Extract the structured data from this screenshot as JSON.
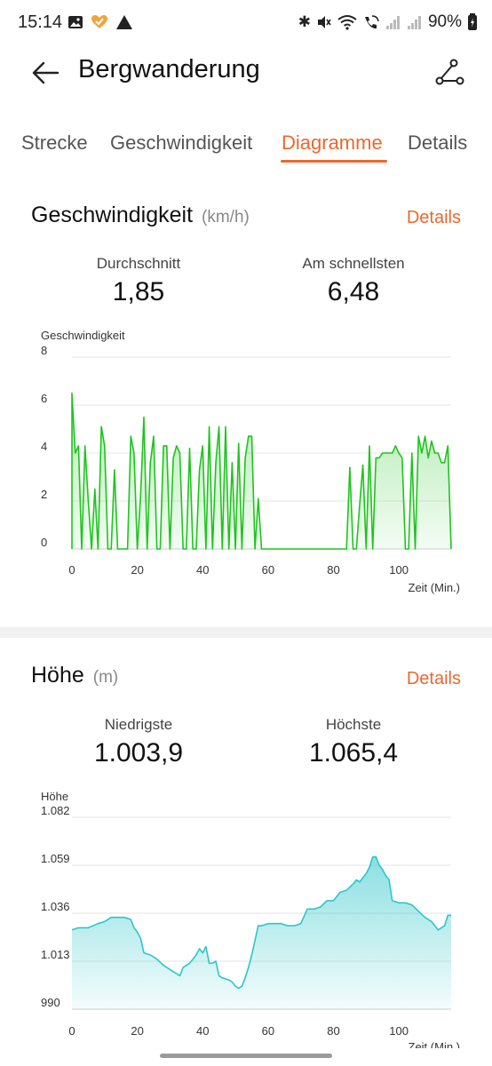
{
  "status_bar": {
    "time": "15:14",
    "battery": "90%",
    "icons": [
      "image-icon",
      "app-heart-icon",
      "alert-triangle-icon",
      "bluetooth-icon",
      "mute-icon",
      "wifi-icon",
      "call-wifi-icon",
      "signal-icon",
      "signal-icon",
      "battery-charging-icon"
    ]
  },
  "header": {
    "title": "Bergwanderung",
    "back_icon": "arrow-left-icon",
    "route_icon": "route-icon"
  },
  "tabs": [
    {
      "label": "Strecke",
      "active": false
    },
    {
      "label": "Geschwindigkeit",
      "active": false
    },
    {
      "label": "Diagramme",
      "active": true
    },
    {
      "label": "Details",
      "active": false
    }
  ],
  "accent_color": "#e8692e",
  "speed": {
    "title": "Geschwindigkeit",
    "unit": "(km/h)",
    "details_label": "Details",
    "stats": [
      {
        "label": "Durchschnitt",
        "value": "1,85"
      },
      {
        "label": "Am schnellsten",
        "value": "6,48"
      }
    ]
  },
  "elevation": {
    "title": "Höhe",
    "unit": "(m)",
    "details_label": "Details",
    "stats": [
      {
        "label": "Niedrigste",
        "value": "1.003,9"
      },
      {
        "label": "Höchste",
        "value": "1.065,4"
      }
    ]
  },
  "chart_data": [
    {
      "type": "area",
      "ylabel": "Geschwindigkeit",
      "xlabel": "Zeit (Min.)",
      "color": "#1fc41f",
      "xlim": [
        0,
        116
      ],
      "ylim": [
        0,
        8
      ],
      "x_ticks": [
        "0",
        "20",
        "40",
        "60",
        "80",
        "100"
      ],
      "y_ticks": [
        "8",
        "6",
        "4",
        "2",
        "0"
      ],
      "grid": true,
      "x": [
        -1,
        0,
        1,
        2,
        3,
        4,
        5,
        6,
        7,
        8,
        9,
        10,
        11,
        12,
        13,
        14,
        15,
        16,
        17,
        18,
        19,
        20,
        21,
        22,
        23,
        24,
        25,
        26,
        27,
        28,
        29,
        30,
        31,
        32,
        33,
        34,
        35,
        36,
        37,
        38,
        39,
        40,
        41,
        42,
        43,
        44,
        45,
        46,
        47,
        48,
        49,
        50,
        51,
        52,
        53,
        54,
        55,
        56,
        57,
        58,
        60,
        70,
        80,
        84,
        85,
        86,
        87,
        88,
        89,
        90,
        91,
        92,
        93,
        94,
        95,
        96,
        97,
        98,
        99,
        100,
        101,
        102,
        103,
        104,
        105,
        106,
        107,
        108,
        109,
        110,
        111,
        112,
        113,
        114,
        115,
        116
      ],
      "y": [
        0,
        6.5,
        4,
        4.3,
        0,
        4.3,
        2,
        0,
        2.5,
        0,
        5.1,
        4.3,
        0,
        0,
        3.3,
        0,
        0,
        0,
        0,
        4.7,
        4,
        0,
        2.2,
        5.5,
        0,
        3.6,
        4.7,
        0,
        0,
        4.3,
        4.3,
        0,
        3.8,
        4.3,
        4,
        0,
        0,
        4.2,
        0,
        0,
        3.3,
        4.3,
        0,
        5.1,
        0,
        3.6,
        5.1,
        0,
        5.1,
        0,
        3.6,
        0,
        4.4,
        0,
        3.8,
        4.7,
        4.7,
        0,
        2.1,
        0,
        0,
        0,
        0,
        0,
        3.4,
        0,
        0,
        1.8,
        3.5,
        0,
        4.3,
        0,
        3.8,
        3.8,
        4,
        4,
        4,
        4,
        4.3,
        4,
        3.8,
        0,
        0,
        4,
        0,
        4.7,
        4,
        4.7,
        3.8,
        4.5,
        4,
        4,
        3.6,
        3.6,
        4.3,
        0
      ]
    },
    {
      "type": "area",
      "ylabel": "Höhe",
      "xlabel": "Zeit (Min.)",
      "color": "#2dc6c9",
      "xlim": [
        0,
        116
      ],
      "ylim": [
        990,
        1082
      ],
      "x_ticks": [
        "0",
        "20",
        "40",
        "60",
        "80",
        "100"
      ],
      "y_ticks": [
        "1.082",
        "1.059",
        "1.036",
        "1.013",
        "990"
      ],
      "grid": true,
      "x": [
        -1,
        2,
        5,
        8,
        10,
        12,
        14,
        16,
        18,
        19,
        20,
        21,
        22,
        24,
        26,
        28,
        30,
        32,
        33,
        34,
        35,
        36,
        37,
        38,
        39,
        40,
        41,
        42,
        43,
        44,
        45,
        46,
        48,
        49,
        50,
        51,
        52,
        53,
        54,
        55,
        56,
        57,
        58,
        60,
        62,
        64,
        66,
        68,
        70,
        72,
        74,
        76,
        78,
        80,
        82,
        84,
        86,
        87,
        88,
        90,
        91,
        92,
        93,
        94,
        95,
        96,
        97,
        98,
        100,
        102,
        104,
        106,
        108,
        110,
        112,
        114,
        115,
        116
      ],
      "y": [
        1028,
        1029,
        1029,
        1031,
        1032,
        1034,
        1034,
        1034,
        1033,
        1029,
        1027,
        1024,
        1017,
        1016,
        1014,
        1011,
        1009,
        1007,
        1006,
        1010,
        1011,
        1012,
        1014,
        1016,
        1019,
        1017,
        1020,
        1012,
        1012,
        1013,
        1006,
        1005,
        1004,
        1003,
        1001,
        1000,
        1001,
        1005,
        1010,
        1016,
        1023,
        1030,
        1030,
        1031,
        1031,
        1031,
        1030,
        1030,
        1031,
        1038,
        1038,
        1039,
        1042,
        1042,
        1046,
        1047,
        1050,
        1052,
        1051,
        1055,
        1058,
        1063,
        1063,
        1059,
        1057,
        1054,
        1052,
        1042,
        1041,
        1041,
        1040,
        1037,
        1034,
        1032,
        1028,
        1030,
        1035,
        1035
      ]
    }
  ]
}
